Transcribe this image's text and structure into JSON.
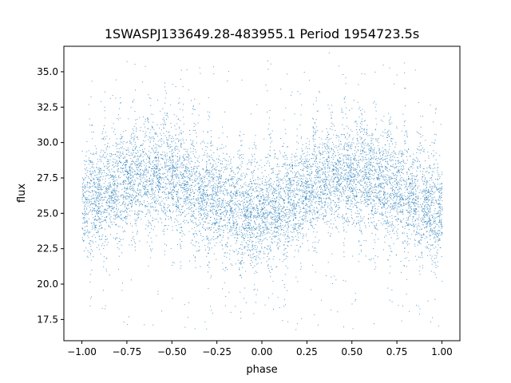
{
  "chart_data": {
    "type": "scatter",
    "title": "1SWASPJ133649.28-483955.1 Period 1954723.5s",
    "xlabel": "phase",
    "ylabel": "flux",
    "xlim": [
      -1.1,
      1.1
    ],
    "ylim": [
      16.0,
      36.8
    ],
    "x_ticks": [
      -1.0,
      -0.75,
      -0.5,
      -0.25,
      0.0,
      0.25,
      0.5,
      0.75,
      1.0
    ],
    "x_tick_labels": [
      "−1.00",
      "−0.75",
      "−0.50",
      "−0.25",
      "0.00",
      "0.25",
      "0.50",
      "0.75",
      "1.00"
    ],
    "y_ticks": [
      17.5,
      20.0,
      22.5,
      25.0,
      27.5,
      30.0,
      32.5,
      35.0
    ],
    "y_tick_labels": [
      "17.5",
      "20.0",
      "22.5",
      "25.0",
      "27.5",
      "30.0",
      "32.5",
      "35.0"
    ],
    "grid": false,
    "marker_color": "#1f77b4",
    "series": [
      {
        "phase_domain": [
          -1.0,
          1.0
        ],
        "trend_x": [
          -1.0,
          -0.9,
          -0.8,
          -0.7,
          -0.6,
          -0.5,
          -0.4,
          -0.3,
          -0.2,
          -0.1,
          0.0,
          0.1,
          0.2,
          0.3,
          0.4,
          0.5,
          0.6,
          0.7,
          0.8,
          0.9,
          1.0
        ],
        "trend_y": [
          25.8,
          26.3,
          27.2,
          27.6,
          27.8,
          27.7,
          27.0,
          26.3,
          25.6,
          25.1,
          25.0,
          25.4,
          26.3,
          27.2,
          27.6,
          27.8,
          27.7,
          27.0,
          26.3,
          25.6,
          25.2
        ],
        "core_spread": 1.6,
        "outlier_range": [
          16.8,
          35.9
        ]
      }
    ]
  }
}
